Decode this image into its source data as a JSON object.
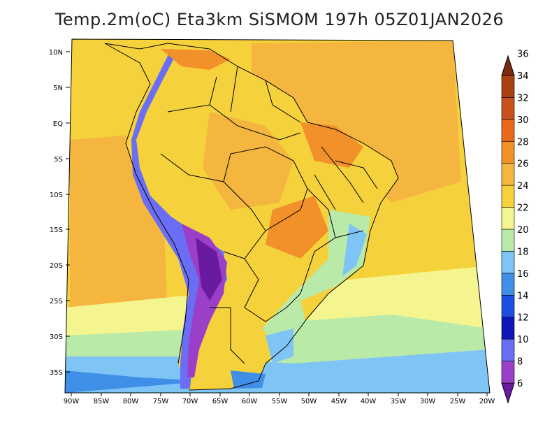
{
  "map": {
    "title": "Temp.2m(oC) Eta3km SiSMOM 197h 05Z01JAN2026",
    "variable": "Temp.2m(oC)",
    "lat_labels": [
      "10N",
      "5N",
      "EQ",
      "5S",
      "10S",
      "15S",
      "20S",
      "25S",
      "30S",
      "35S"
    ],
    "lon_labels": [
      "90W",
      "85W",
      "80W",
      "75W",
      "70W",
      "65W",
      "60W",
      "55W",
      "50W",
      "45W",
      "40W",
      "35W",
      "30W",
      "25W",
      "20W"
    ],
    "colorbar": {
      "ticks": [
        "6",
        "8",
        "10",
        "12",
        "14",
        "16",
        "18",
        "20",
        "22",
        "24",
        "26",
        "28",
        "30",
        "32",
        "34",
        "36"
      ],
      "colors": [
        "#6a1aa0",
        "#9b3fc8",
        "#6a6ef5",
        "#0e16b8",
        "#1c4ee0",
        "#3f8ee8",
        "#7ec4f5",
        "#b9eaa8",
        "#f5f590",
        "#f5d23c",
        "#f5b63f",
        "#f2902a",
        "#e86a18",
        "#c8501a",
        "#a8400f",
        "#7a2a10"
      ]
    }
  }
}
